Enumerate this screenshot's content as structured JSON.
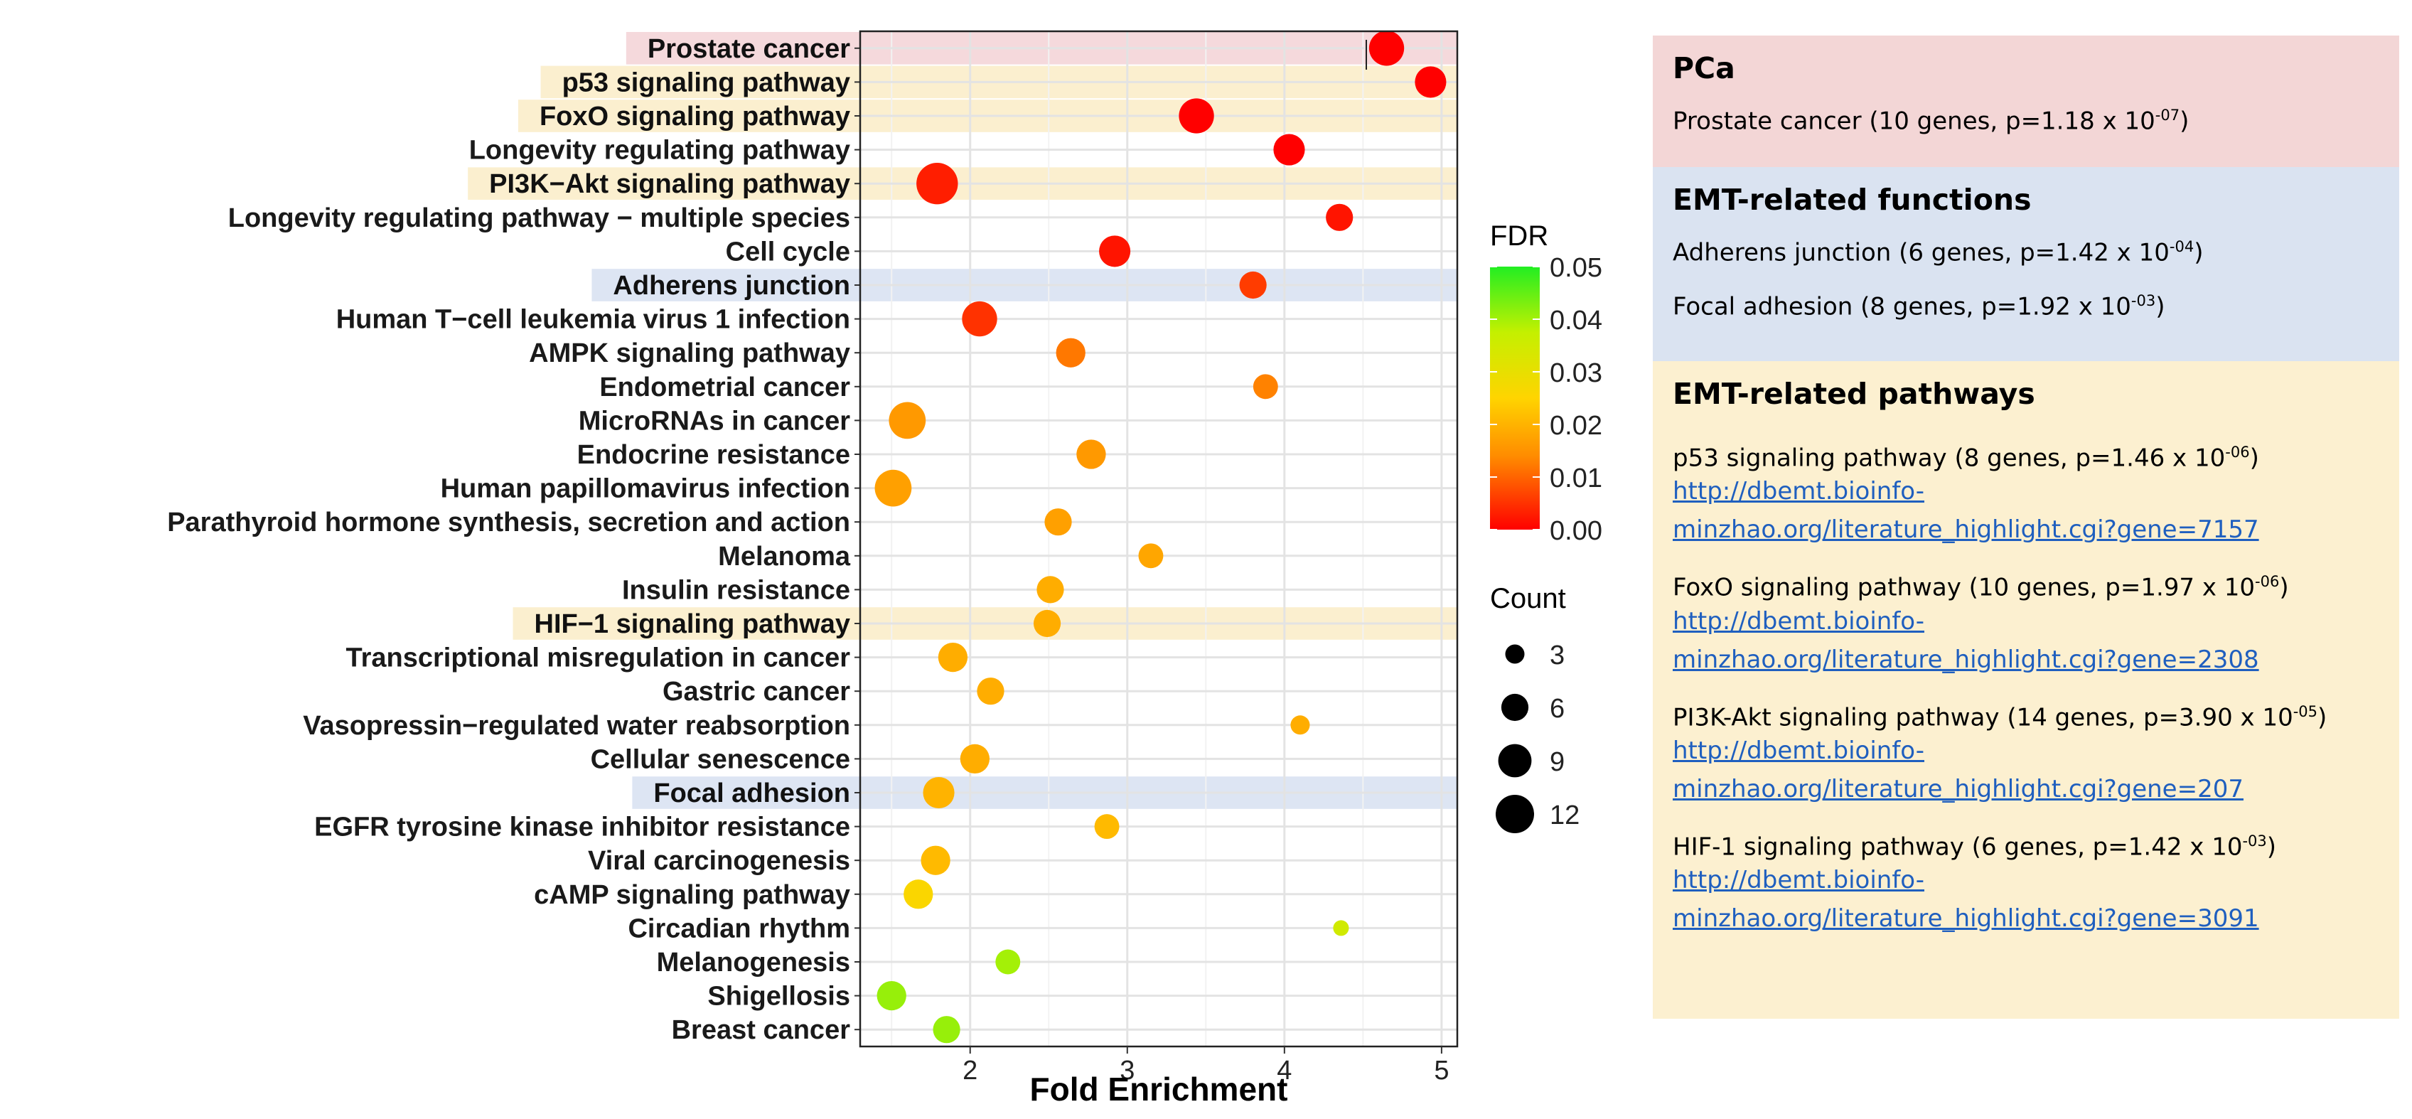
{
  "colors": {
    "highlight_pca": "#f5d9dc",
    "highlight_functions": "#dde5f3",
    "highlight_pathways": "#fbefcf",
    "panel_pca": "#f3d6d6",
    "panel_functions": "#dae3f1",
    "panel_pathways": "#fcf0d0",
    "link": "#1f5fbf"
  },
  "chart_data": {
    "type": "scatter",
    "xlabel": "Fold Enrichment",
    "xlim": [
      1.3,
      5.1
    ],
    "xticks": [
      2,
      3,
      4,
      5
    ],
    "categories": [
      "Prostate cancer",
      "p53 signaling pathway",
      "FoxO signaling pathway",
      "Longevity regulating pathway",
      "PI3K−Akt signaling pathway",
      "Longevity regulating pathway − multiple species",
      "Cell cycle",
      "Adherens junction",
      "Human T−cell leukemia virus 1 infection",
      "AMPK signaling pathway",
      "Endometrial cancer",
      "MicroRNAs in cancer",
      "Endocrine resistance",
      "Human papillomavirus infection",
      "Parathyroid hormone synthesis, secretion and action",
      "Melanoma",
      "Insulin resistance",
      "HIF−1 signaling pathway",
      "Transcriptional misregulation in cancer",
      "Gastric cancer",
      "Vasopressin−regulated water reabsorption",
      "Cellular senescence",
      "Focal adhesion",
      "EGFR tyrosine kinase inhibitor resistance",
      "Viral carcinogenesis",
      "cAMP signaling pathway",
      "Circadian rhythm",
      "Melanogenesis",
      "Shigellosis",
      "Breast cancer"
    ],
    "highlight": [
      "pca",
      "pathway",
      "pathway",
      "",
      "pathway",
      "",
      "",
      "function",
      "",
      "",
      "",
      "",
      "",
      "",
      "",
      "",
      "",
      "pathway",
      "",
      "",
      "",
      "",
      "function",
      "",
      "",
      "",
      "",
      "",
      "",
      ""
    ],
    "fold_enrichment": [
      4.65,
      4.93,
      3.44,
      4.03,
      1.79,
      4.35,
      2.92,
      3.8,
      2.06,
      2.64,
      3.88,
      1.6,
      2.77,
      1.51,
      2.56,
      3.15,
      2.51,
      2.49,
      1.89,
      2.13,
      4.1,
      2.03,
      1.8,
      2.87,
      1.78,
      1.67,
      4.36,
      2.24,
      1.5,
      1.85
    ],
    "count": [
      10,
      8,
      10,
      8,
      14,
      6,
      8,
      6,
      10,
      7,
      5,
      11,
      7,
      11,
      6,
      5,
      6,
      6,
      7,
      6,
      3,
      7,
      8,
      5,
      7,
      7,
      2,
      5,
      7,
      6
    ],
    "fdr": [
      0.0,
      0.0,
      0.0,
      0.0,
      0.003,
      0.002,
      0.002,
      0.006,
      0.005,
      0.012,
      0.013,
      0.016,
      0.016,
      0.017,
      0.017,
      0.018,
      0.019,
      0.019,
      0.019,
      0.019,
      0.019,
      0.019,
      0.02,
      0.021,
      0.021,
      0.026,
      0.035,
      0.04,
      0.041,
      0.041
    ],
    "color_legend": {
      "title": "FDR",
      "ticks": [
        "0.05",
        "0.04",
        "0.03",
        "0.02",
        "0.01",
        "0.00"
      ],
      "range": [
        0,
        0.05
      ]
    },
    "size_legend": {
      "title": "Count",
      "values": [
        3,
        6,
        9,
        12
      ]
    }
  },
  "panel": {
    "pca": {
      "header": "PCa",
      "entry": {
        "text": "Prostate cancer (10 genes, p=1.18 x 10",
        "exp": "-07",
        "close": ")"
      }
    },
    "functions": {
      "header": "EMT-related functions",
      "entries": [
        {
          "text": "Adherens junction (6 genes, p=1.42 x 10",
          "exp": "-04",
          "close": ")"
        },
        {
          "text": "Focal adhesion (8 genes, p=1.92 x 10",
          "exp": "-03",
          "close": ")"
        }
      ]
    },
    "pathways": {
      "header": "EMT-related pathways",
      "entries": [
        {
          "text": "p53 signaling pathway (8 genes, p=1.46 x 10",
          "exp": "-06",
          "close": ")",
          "link1": "http://dbemt.bioinfo-",
          "link2": "minzhao.org/literature_highlight.cgi?gene=7157"
        },
        {
          "text": "FoxO signaling pathway (10 genes, p=1.97 x 10",
          "exp": "-06",
          "close": ")",
          "link1": "http://dbemt.bioinfo-",
          "link2": "minzhao.org/literature_highlight.cgi?gene=2308"
        },
        {
          "text": "PI3K-Akt signaling pathway (14 genes, p=3.90 x 10",
          "exp": "-05",
          "close": ")",
          "link1": "http://dbemt.bioinfo-",
          "link2": "minzhao.org/literature_highlight.cgi?gene=207"
        },
        {
          "text": "HIF-1 signaling pathway (6 genes, p=1.42 x 10",
          "exp": "-03",
          "close": ")",
          "link1": "http://dbemt.bioinfo-",
          "link2": "minzhao.org/literature_highlight.cgi?gene=3091"
        }
      ]
    }
  }
}
